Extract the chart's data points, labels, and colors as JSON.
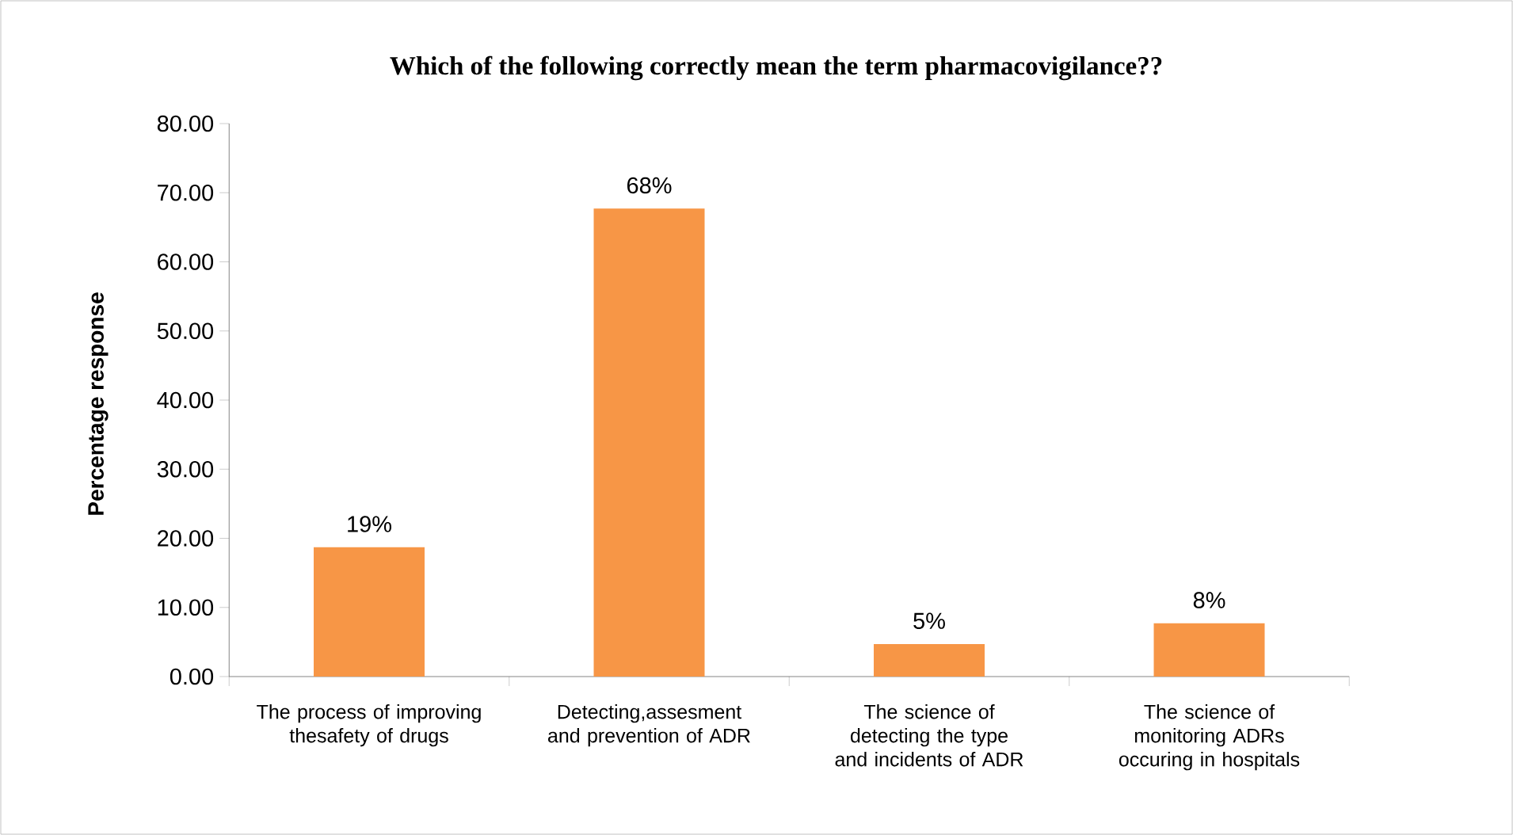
{
  "chart_data": {
    "type": "bar",
    "title": "Which of the following correctly mean the term pharmacovigilance??",
    "ylabel": "Percentage response",
    "categories": [
      "The process of improving thesafety of drugs",
      "Detecting,assesment and prevention of ADR",
      "The science of detecting the type and incidents of ADR",
      "The science of monitoring ADRs occuring in hospitals"
    ],
    "values": [
      18.7,
      67.7,
      4.7,
      7.7
    ],
    "value_labels": [
      "19%",
      "68%",
      "5%",
      "8%"
    ],
    "color": "#f79646",
    "ylim": [
      0,
      80
    ],
    "yticks": [
      {
        "value": 0,
        "label": "0.00"
      },
      {
        "value": 10,
        "label": "10.00"
      },
      {
        "value": 20,
        "label": "20.00"
      },
      {
        "value": 30,
        "label": "30.00"
      },
      {
        "value": 40,
        "label": "40.00"
      },
      {
        "value": 50,
        "label": "50.00"
      },
      {
        "value": 60,
        "label": "60.00"
      },
      {
        "value": 70,
        "label": "70.00"
      },
      {
        "value": 80,
        "label": "80.00"
      }
    ],
    "grid": false
  }
}
